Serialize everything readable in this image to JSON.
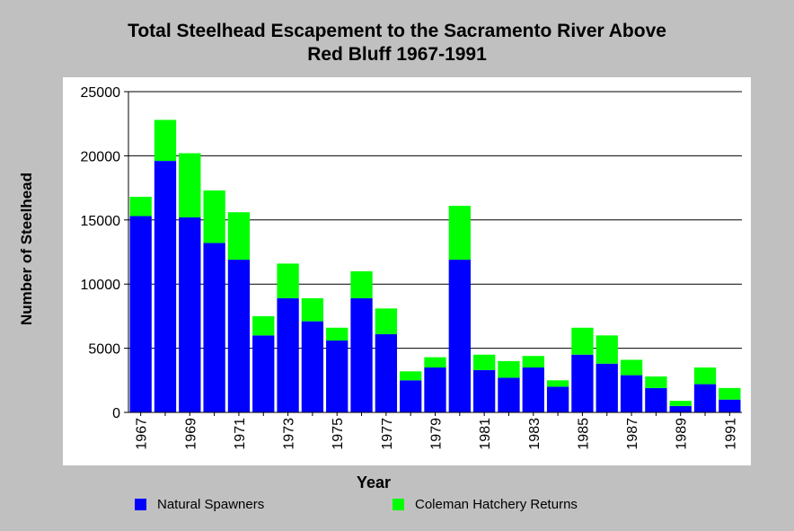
{
  "chart_data": {
    "type": "bar",
    "stacked": true,
    "title": "Total Steelhead Escapement to the Sacramento River Above Red Bluff 1967-1991",
    "title_lines": [
      "Total Steelhead Escapement to the Sacramento River Above",
      "Red Bluff 1967-1991"
    ],
    "xlabel": "Year",
    "ylabel": "Number of Steelhead",
    "ylim": [
      0,
      25000
    ],
    "yticks": [
      0,
      5000,
      10000,
      15000,
      20000,
      25000
    ],
    "grid": true,
    "legend_position": "bottom",
    "categories": [
      "1967",
      "1968",
      "1969",
      "1970",
      "1971",
      "1972",
      "1973",
      "1974",
      "1975",
      "1976",
      "1977",
      "1978",
      "1979",
      "1980",
      "1981",
      "1982",
      "1983",
      "1984",
      "1985",
      "1986",
      "1987",
      "1988",
      "1989",
      "1990",
      "1991"
    ],
    "tick_labels": [
      "1967",
      "",
      "1969",
      "",
      "1971",
      "",
      "1973",
      "",
      "1975",
      "",
      "1977",
      "",
      "1979",
      "",
      "1981",
      "",
      "1983",
      "",
      "1985",
      "",
      "1987",
      "",
      "1989",
      "",
      "1991"
    ],
    "series": [
      {
        "name": "Natural Spawners",
        "color": "#0000ff",
        "values": [
          15300,
          19600,
          15200,
          13200,
          11900,
          6000,
          8900,
          7100,
          5600,
          8900,
          6100,
          2500,
          3500,
          11900,
          3300,
          2700,
          3500,
          2000,
          4500,
          3800,
          2900,
          1900,
          500,
          2200,
          1000
        ]
      },
      {
        "name": "Coleman Hatchery Returns",
        "color": "#00ff00",
        "values": [
          1500,
          3200,
          5000,
          4100,
          3700,
          1500,
          2700,
          1800,
          1000,
          2100,
          2000,
          700,
          800,
          4200,
          1200,
          1300,
          900,
          500,
          2100,
          2200,
          1200,
          900,
          400,
          1300,
          900
        ]
      }
    ]
  }
}
